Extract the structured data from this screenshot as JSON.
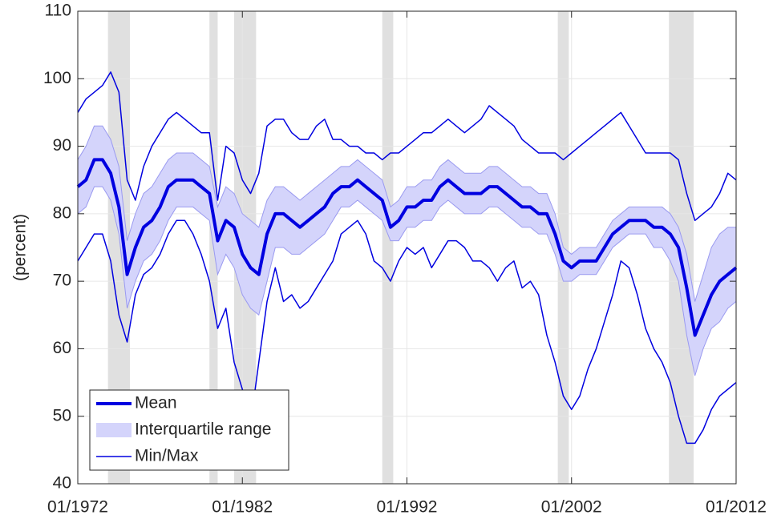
{
  "chart_data": {
    "type": "line",
    "ylabel": "(percent)",
    "x": [
      "01/1972",
      "07/1972",
      "01/1973",
      "07/1973",
      "01/1974",
      "07/1974",
      "01/1975",
      "07/1975",
      "01/1976",
      "07/1976",
      "01/1977",
      "07/1977",
      "01/1978",
      "07/1978",
      "01/1979",
      "07/1979",
      "01/1980",
      "07/1980",
      "01/1981",
      "07/1981",
      "01/1982",
      "07/1982",
      "01/1983",
      "07/1983",
      "01/1984",
      "07/1984",
      "01/1985",
      "07/1985",
      "01/1986",
      "07/1986",
      "01/1987",
      "07/1987",
      "01/1988",
      "07/1988",
      "01/1989",
      "07/1989",
      "01/1990",
      "07/1990",
      "01/1991",
      "07/1991",
      "01/1992",
      "07/1992",
      "01/1993",
      "07/1993",
      "01/1994",
      "07/1994",
      "01/1995",
      "07/1995",
      "01/1996",
      "07/1996",
      "01/1997",
      "07/1997",
      "01/1998",
      "07/1998",
      "01/1999",
      "07/1999",
      "01/2000",
      "07/2000",
      "01/2001",
      "07/2001",
      "01/2002",
      "07/2002",
      "01/2003",
      "07/2003",
      "01/2004",
      "07/2004",
      "01/2005",
      "07/2005",
      "01/2006",
      "07/2006",
      "01/2007",
      "07/2007",
      "01/2008",
      "07/2008",
      "01/2009",
      "07/2009",
      "01/2010",
      "07/2010",
      "01/2011",
      "07/2011",
      "01/2012"
    ],
    "series": [
      {
        "name": "Mean",
        "color": "#0000e0",
        "values": [
          84,
          85,
          88,
          88,
          86,
          81,
          71,
          75,
          78,
          79,
          81,
          84,
          85,
          85,
          85,
          84,
          83,
          76,
          79,
          78,
          74,
          72,
          71,
          77,
          80,
          80,
          79,
          78,
          79,
          80,
          81,
          83,
          84,
          84,
          85,
          84,
          83,
          82,
          78,
          79,
          81,
          81,
          82,
          82,
          84,
          85,
          84,
          83,
          83,
          83,
          84,
          84,
          83,
          82,
          81,
          81,
          80,
          80,
          77,
          73,
          72,
          73,
          73,
          73,
          75,
          77,
          78,
          79,
          79,
          79,
          78,
          78,
          77,
          75,
          69,
          62,
          65,
          68,
          70,
          71,
          72
        ]
      }
    ],
    "band": {
      "name": "Interquartile range",
      "color": "#d4d4fb",
      "lower": [
        80,
        81,
        84,
        84,
        82,
        77,
        66,
        70,
        73,
        74,
        76,
        79,
        81,
        81,
        81,
        80,
        79,
        71,
        74,
        72,
        68,
        66,
        65,
        70,
        75,
        75,
        74,
        74,
        75,
        76,
        77,
        79,
        81,
        81,
        82,
        81,
        80,
        79,
        76,
        76,
        78,
        78,
        79,
        79,
        81,
        82,
        81,
        80,
        80,
        80,
        81,
        81,
        80,
        79,
        78,
        78,
        77,
        77,
        74,
        70,
        70,
        71,
        71,
        71,
        73,
        75,
        76,
        77,
        77,
        77,
        75,
        75,
        73,
        70,
        62,
        56,
        60,
        63,
        64,
        66,
        67
      ],
      "upper": [
        88,
        90,
        93,
        93,
        91,
        87,
        76,
        80,
        83,
        84,
        86,
        88,
        89,
        89,
        89,
        88,
        87,
        81,
        84,
        83,
        80,
        79,
        78,
        82,
        84,
        84,
        83,
        82,
        83,
        84,
        85,
        86,
        87,
        87,
        88,
        87,
        86,
        85,
        81,
        82,
        84,
        84,
        85,
        85,
        87,
        88,
        87,
        86,
        86,
        86,
        87,
        87,
        86,
        85,
        84,
        84,
        83,
        83,
        80,
        75,
        74,
        75,
        75,
        75,
        77,
        79,
        80,
        81,
        81,
        81,
        81,
        81,
        80,
        78,
        74,
        67,
        71,
        75,
        77,
        78,
        78
      ]
    },
    "minmax": {
      "name": "Min/Max",
      "color": "#0000e0",
      "lower": [
        73,
        75,
        77,
        77,
        73,
        65,
        61,
        68,
        71,
        72,
        74,
        77,
        79,
        79,
        77,
        74,
        70,
        63,
        66,
        58,
        54,
        49,
        58,
        67,
        72,
        67,
        68,
        66,
        67,
        69,
        71,
        73,
        77,
        78,
        79,
        77,
        73,
        72,
        70,
        73,
        75,
        74,
        75,
        72,
        74,
        76,
        76,
        75,
        73,
        73,
        72,
        70,
        72,
        73,
        69,
        70,
        68,
        62,
        58,
        53,
        51,
        53,
        57,
        60,
        64,
        68,
        73,
        72,
        68,
        63,
        60,
        58,
        55,
        50,
        46,
        46,
        48,
        51,
        53,
        54,
        55
      ],
      "upper": [
        95,
        97,
        98,
        99,
        101,
        98,
        85,
        82,
        87,
        90,
        92,
        94,
        95,
        94,
        93,
        92,
        92,
        82,
        90,
        89,
        85,
        83,
        86,
        93,
        94,
        94,
        92,
        91,
        91,
        93,
        94,
        91,
        91,
        90,
        90,
        89,
        89,
        88,
        89,
        89,
        90,
        91,
        92,
        92,
        93,
        94,
        93,
        92,
        93,
        94,
        96,
        95,
        94,
        93,
        91,
        90,
        89,
        89,
        89,
        88,
        89,
        90,
        91,
        92,
        93,
        94,
        95,
        93,
        91,
        89,
        89,
        89,
        89,
        88,
        83,
        79,
        80,
        81,
        83,
        86,
        85
      ]
    },
    "shaded": [
      [
        "11/1973",
        "03/1975"
      ],
      [
        "01/1980",
        "07/1980"
      ],
      [
        "07/1981",
        "11/1982"
      ],
      [
        "07/1990",
        "03/1991"
      ],
      [
        "03/2001",
        "11/2001"
      ],
      [
        "12/2007",
        "06/2009"
      ]
    ],
    "shade_color": "#e0e0e0",
    "xlim": [
      "01/1972",
      "01/2012"
    ],
    "xticks": [
      "01/1972",
      "01/1982",
      "01/1992",
      "01/2002",
      "01/2012"
    ],
    "ylim": [
      40,
      110
    ],
    "yticks": [
      40,
      50,
      60,
      70,
      80,
      90,
      100,
      110
    ],
    "grid": true,
    "legend": "lower left"
  }
}
